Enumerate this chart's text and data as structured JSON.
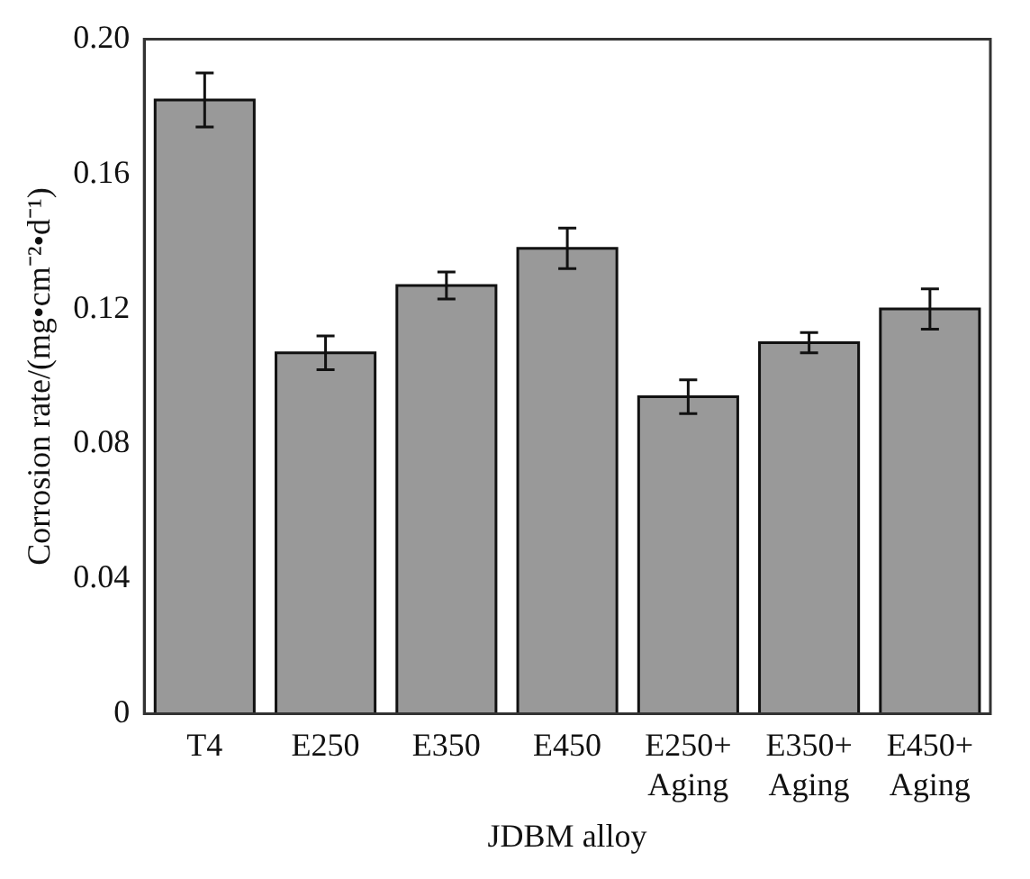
{
  "chart_data": {
    "type": "bar",
    "xlabel": "JDBM alloy",
    "ylabel": "Corrosion rate/(mg•cm⁻²•d⁻¹)",
    "categories": [
      "T4",
      "E250",
      "E350",
      "E450",
      "E250+\nAging",
      "E350+\nAging",
      "E450+\nAging"
    ],
    "values": [
      0.182,
      0.107,
      0.127,
      0.138,
      0.094,
      0.11,
      0.12
    ],
    "errors": [
      0.008,
      0.005,
      0.004,
      0.006,
      0.005,
      0.003,
      0.006
    ],
    "color": "#999999",
    "ylim": [
      0,
      0.2
    ],
    "yticks": [
      0,
      {
        "value": 0.04,
        "label": "0.04"
      },
      {
        "value": 0.08,
        "label": "0.08"
      },
      {
        "value": 0.12,
        "label": "0.12"
      },
      {
        "value": 0.16,
        "label": "0.16"
      },
      {
        "value": 0.2,
        "label": "0.20"
      }
    ],
    "grid": false,
    "legend": false
  }
}
